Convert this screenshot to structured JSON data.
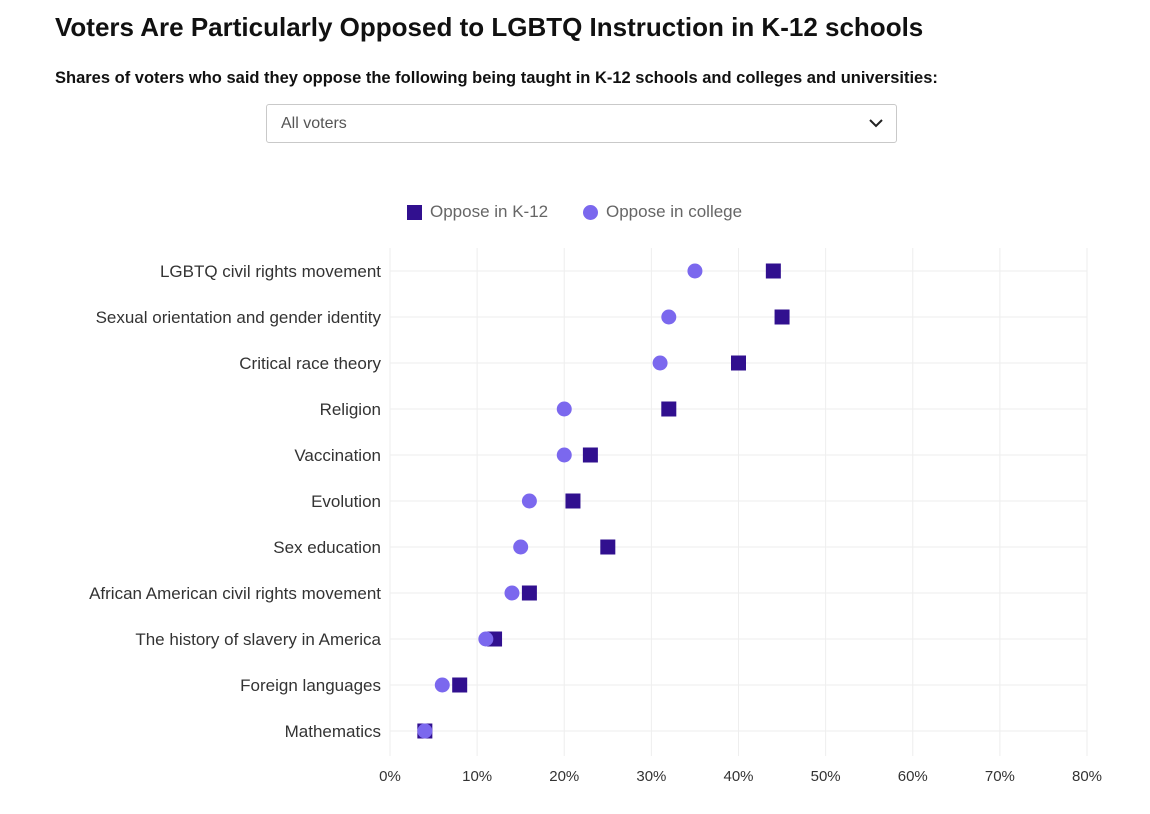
{
  "title": "Voters Are Particularly Opposed to LGBTQ Instruction in K-12 schools",
  "subtitle": "Shares of voters who said they oppose the following being taught in K-12 schools and colleges and universities:",
  "dropdown": {
    "selected": "All voters",
    "icon": "chevron-down-icon"
  },
  "colors": {
    "k12": "#31108f",
    "college": "#7b68ee",
    "grid": "#eeeeee"
  },
  "chart_data": {
    "type": "scatter",
    "categories": [
      "LGBTQ civil rights movement",
      "Sexual orientation and gender identity",
      "Critical race theory",
      "Religion",
      "Vaccination",
      "Evolution",
      "Sex education",
      "African American civil rights movement",
      "The history of slavery in America",
      "Foreign languages",
      "Mathematics"
    ],
    "series": [
      {
        "name": "Oppose in K-12",
        "marker": "square",
        "values": [
          44,
          45,
          40,
          32,
          23,
          21,
          25,
          16,
          12,
          8,
          4
        ]
      },
      {
        "name": "Oppose in college",
        "marker": "circle",
        "values": [
          35,
          32,
          31,
          20,
          20,
          16,
          15,
          14,
          11,
          6,
          4
        ]
      }
    ],
    "x_ticks": [
      "0%",
      "10%",
      "20%",
      "30%",
      "40%",
      "50%",
      "60%",
      "70%",
      "80%"
    ],
    "xlim": [
      0,
      80
    ],
    "grid": true,
    "legend_position": "top-center"
  }
}
